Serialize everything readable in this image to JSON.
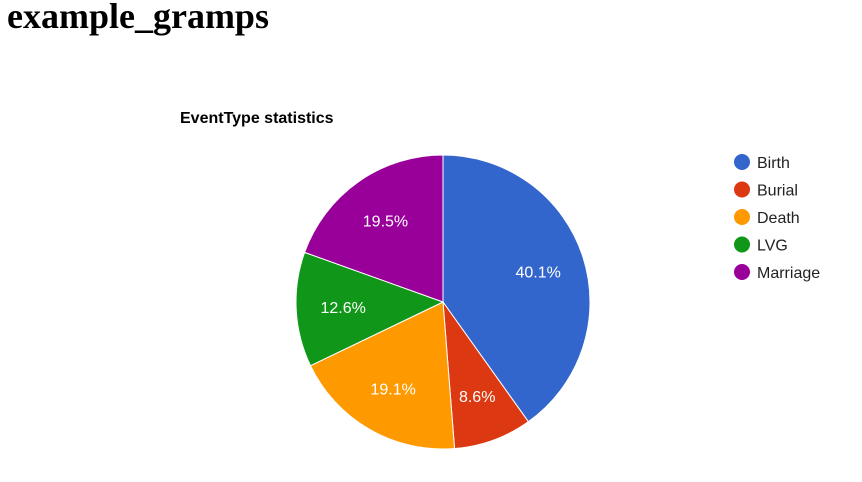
{
  "page": {
    "heading": "example_gramps"
  },
  "chart_data": {
    "type": "pie",
    "title": "EventType statistics",
    "categories": [
      "Birth",
      "Burial",
      "Death",
      "LVG",
      "Marriage"
    ],
    "values": [
      40.1,
      8.6,
      19.1,
      12.6,
      19.5
    ],
    "labels": [
      "40.1%",
      "8.6%",
      "19.1%",
      "12.6%",
      "19.5%"
    ],
    "colors": [
      "#3366cc",
      "#dc3912",
      "#ff9900",
      "#109618",
      "#990099"
    ],
    "start_angle": "12 o'clock",
    "direction": "clockwise",
    "legend_position": "right"
  }
}
